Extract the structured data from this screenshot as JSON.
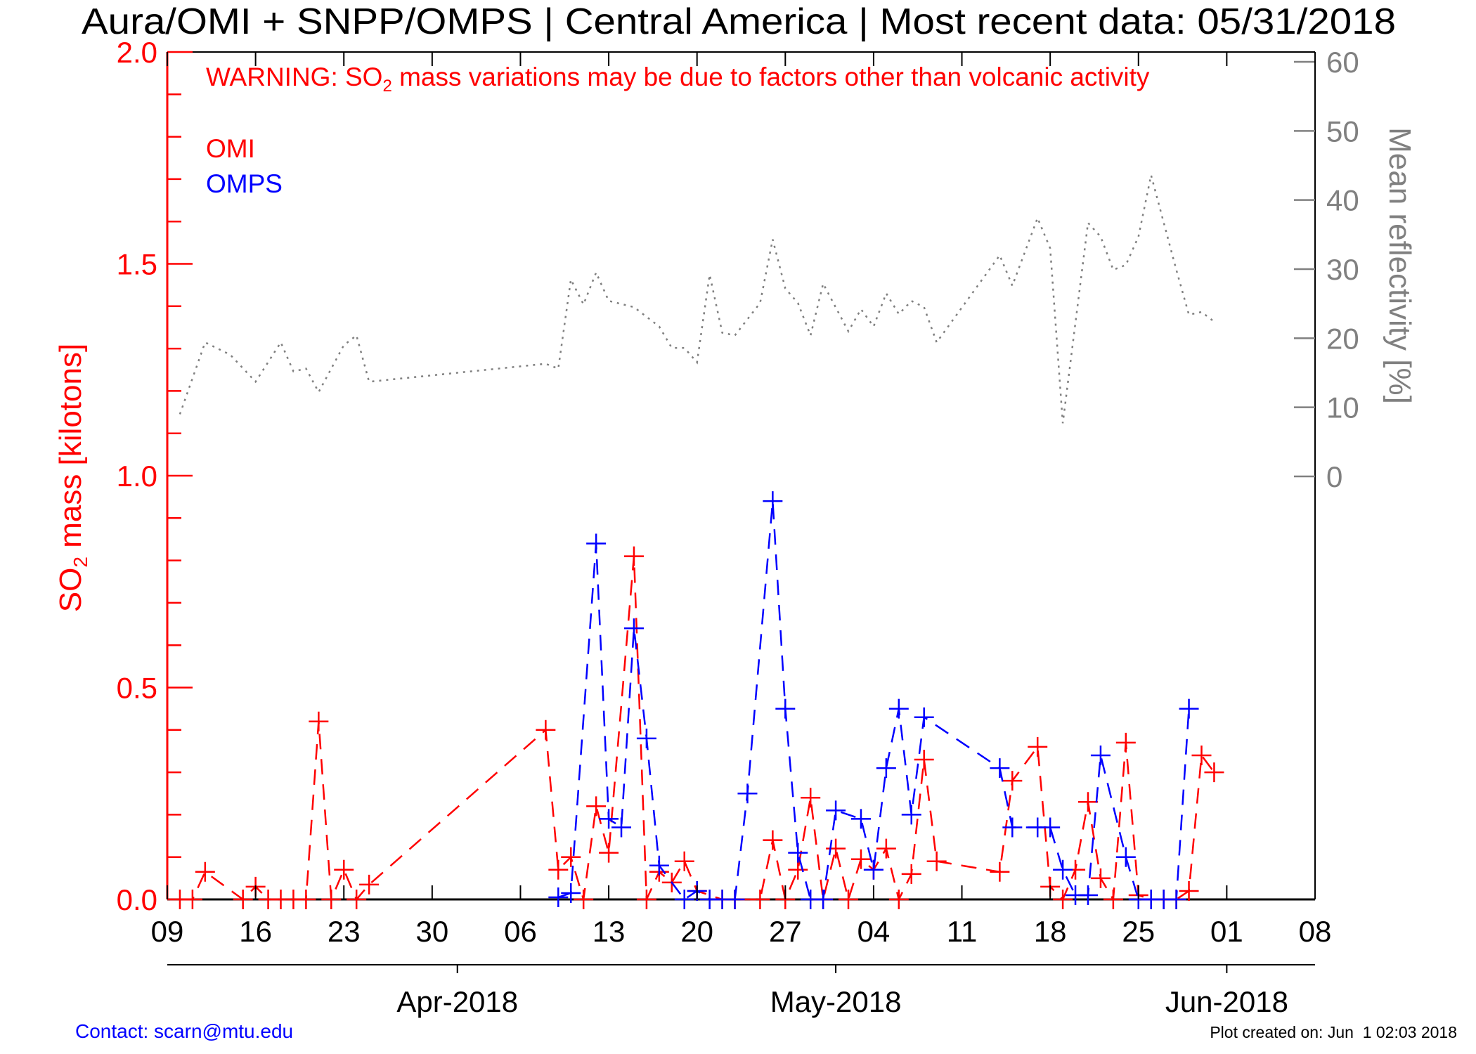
{
  "chart_data": {
    "type": "line",
    "title": "Aura/OMI + SNPP/OMPS | Central America | Most recent data: 05/31/2018",
    "warning_prefix": "WARNING: SO",
    "warning_sub": "2",
    "warning_suffix": " mass variations may be due to factors other than volcanic activity",
    "ylabel_prefix": "SO",
    "ylabel_sub": "2",
    "ylabel_suffix": " mass [kilotons]",
    "y2label": "Mean reflectivity [%]",
    "xlim": [
      "2018-03-09",
      "2018-06-08"
    ],
    "ylim": [
      0,
      2.0
    ],
    "y2lim": [
      0,
      60
    ],
    "y_ticks": [
      "0.0",
      "0.5",
      "1.0",
      "1.5",
      "2.0"
    ],
    "y2_ticks": [
      "0",
      "10",
      "20",
      "30",
      "40",
      "50",
      "60"
    ],
    "x_ticks": [
      {
        "date": "2018-03-09",
        "label": "09"
      },
      {
        "date": "2018-03-16",
        "label": "16"
      },
      {
        "date": "2018-03-23",
        "label": "23"
      },
      {
        "date": "2018-03-30",
        "label": "30"
      },
      {
        "date": "2018-04-06",
        "label": "06"
      },
      {
        "date": "2018-04-13",
        "label": "13"
      },
      {
        "date": "2018-04-20",
        "label": "20"
      },
      {
        "date": "2018-04-27",
        "label": "27"
      },
      {
        "date": "2018-05-04",
        "label": "04"
      },
      {
        "date": "2018-05-11",
        "label": "11"
      },
      {
        "date": "2018-05-18",
        "label": "18"
      },
      {
        "date": "2018-05-25",
        "label": "25"
      },
      {
        "date": "2018-06-01",
        "label": "01"
      },
      {
        "date": "2018-06-08",
        "label": "08"
      }
    ],
    "month_ticks": [
      {
        "date": "2018-04-01",
        "label": "Apr-2018"
      },
      {
        "date": "2018-05-01",
        "label": "May-2018"
      },
      {
        "date": "2018-06-01",
        "label": "Jun-2018"
      }
    ],
    "grid": false,
    "legend_placement": "top-left",
    "colors": {
      "omi": "#ff0000",
      "omps": "#0000ff",
      "reflectivity": "#808080",
      "left_axis": "#ff0000",
      "right_axis": "#808080"
    },
    "series": [
      {
        "name": "OMI",
        "axis": "left",
        "style": "dashed-plus",
        "points": [
          [
            "2018-03-10",
            0
          ],
          [
            "2018-03-11",
            0
          ],
          [
            "2018-03-12",
            0.065
          ],
          [
            "2018-03-15",
            0
          ],
          [
            "2018-03-16",
            0.03
          ],
          [
            "2018-03-17",
            0
          ],
          [
            "2018-03-18",
            0
          ],
          [
            "2018-03-19",
            0
          ],
          [
            "2018-03-20",
            0
          ],
          [
            "2018-03-21",
            0.42
          ],
          [
            "2018-03-22",
            0
          ],
          [
            "2018-03-23",
            0.07
          ],
          [
            "2018-03-24",
            0
          ],
          [
            "2018-03-25",
            0.035
          ],
          [
            "2018-04-08",
            0.4
          ],
          [
            "2018-04-09",
            0.07
          ],
          [
            "2018-04-10",
            0.1
          ],
          [
            "2018-04-11",
            0
          ],
          [
            "2018-04-12",
            0.22
          ],
          [
            "2018-04-13",
            0.11
          ],
          [
            "2018-04-15",
            0.81
          ],
          [
            "2018-04-16",
            0
          ],
          [
            "2018-04-17",
            0.065
          ],
          [
            "2018-04-18",
            0.04
          ],
          [
            "2018-04-19",
            0.09
          ],
          [
            "2018-04-20",
            0.02
          ],
          [
            "2018-04-22",
            0
          ],
          [
            "2018-04-23",
            0
          ],
          [
            "2018-04-25",
            0
          ],
          [
            "2018-04-26",
            0.14
          ],
          [
            "2018-04-27",
            0
          ],
          [
            "2018-04-28",
            0.07
          ],
          [
            "2018-04-29",
            0.24
          ],
          [
            "2018-04-30",
            0
          ],
          [
            "2018-05-01",
            0.12
          ],
          [
            "2018-05-02",
            0
          ],
          [
            "2018-05-03",
            0.095
          ],
          [
            "2018-05-04",
            0.07
          ],
          [
            "2018-05-05",
            0.12
          ],
          [
            "2018-05-06",
            0
          ],
          [
            "2018-05-07",
            0.06
          ],
          [
            "2018-05-08",
            0.33
          ],
          [
            "2018-05-09",
            0.09
          ],
          [
            "2018-05-14",
            0.065
          ],
          [
            "2018-05-15",
            0.28
          ],
          [
            "2018-05-17",
            0.36
          ],
          [
            "2018-05-18",
            0.03
          ],
          [
            "2018-05-19",
            0
          ],
          [
            "2018-05-20",
            0.07
          ],
          [
            "2018-05-21",
            0.23
          ],
          [
            "2018-05-22",
            0.05
          ],
          [
            "2018-05-23",
            0
          ],
          [
            "2018-05-24",
            0.37
          ],
          [
            "2018-05-25",
            0.01
          ],
          [
            "2018-05-26",
            0
          ],
          [
            "2018-05-27",
            0
          ],
          [
            "2018-05-28",
            0
          ],
          [
            "2018-05-29",
            0.02
          ],
          [
            "2018-05-30",
            0.34
          ],
          [
            "2018-05-31",
            0.3
          ]
        ]
      },
      {
        "name": "OMPS",
        "axis": "left",
        "style": "dashed-plus",
        "points": [
          [
            "2018-04-09",
            0.005
          ],
          [
            "2018-04-10",
            0.015
          ],
          [
            "2018-04-12",
            0.84
          ],
          [
            "2018-04-13",
            0.19
          ],
          [
            "2018-04-14",
            0.17
          ],
          [
            "2018-04-15",
            0.64
          ],
          [
            "2018-04-16",
            0.38
          ],
          [
            "2018-04-17",
            0.08
          ],
          [
            "2018-04-19",
            0
          ],
          [
            "2018-04-20",
            0.02
          ],
          [
            "2018-04-21",
            0
          ],
          [
            "2018-04-22",
            0
          ],
          [
            "2018-04-23",
            0
          ],
          [
            "2018-04-24",
            0.25
          ],
          [
            "2018-04-26",
            0.94
          ],
          [
            "2018-04-27",
            0.45
          ],
          [
            "2018-04-28",
            0.11
          ],
          [
            "2018-04-29",
            0
          ],
          [
            "2018-04-30",
            0
          ],
          [
            "2018-05-01",
            0.21
          ],
          [
            "2018-05-03",
            0.19
          ],
          [
            "2018-05-04",
            0.07
          ],
          [
            "2018-05-05",
            0.31
          ],
          [
            "2018-05-06",
            0.45
          ],
          [
            "2018-05-07",
            0.2
          ],
          [
            "2018-05-08",
            0.43
          ],
          [
            "2018-05-14",
            0.31
          ],
          [
            "2018-05-15",
            0.17
          ],
          [
            "2018-05-17",
            0.17
          ],
          [
            "2018-05-18",
            0.17
          ],
          [
            "2018-05-19",
            0.07
          ],
          [
            "2018-05-20",
            0.01
          ],
          [
            "2018-05-21",
            0.01
          ],
          [
            "2018-05-22",
            0.34
          ],
          [
            "2018-05-24",
            0.1
          ],
          [
            "2018-05-25",
            0
          ],
          [
            "2018-05-26",
            0
          ],
          [
            "2018-05-27",
            0
          ],
          [
            "2018-05-28",
            0
          ],
          [
            "2018-05-29",
            0.45
          ]
        ]
      },
      {
        "axis": "right",
        "style": "dotted",
        "points": [
          [
            "2018-03-10",
            9
          ],
          [
            "2018-03-12",
            19.4
          ],
          [
            "2018-03-14",
            17.6
          ],
          [
            "2018-03-16",
            13.7
          ],
          [
            "2018-03-18",
            19.4
          ],
          [
            "2018-03-19",
            15.2
          ],
          [
            "2018-03-20",
            15.6
          ],
          [
            "2018-03-21",
            12.2
          ],
          [
            "2018-03-23",
            19
          ],
          [
            "2018-03-24",
            20.4
          ],
          [
            "2018-03-25",
            13.7
          ],
          [
            "2018-04-08",
            16.3
          ],
          [
            "2018-04-09",
            15.6
          ],
          [
            "2018-04-10",
            28.5
          ],
          [
            "2018-04-11",
            24.9
          ],
          [
            "2018-04-12",
            29.5
          ],
          [
            "2018-04-13",
            25.4
          ],
          [
            "2018-04-15",
            24.5
          ],
          [
            "2018-04-17",
            21.7
          ],
          [
            "2018-04-18",
            18.6
          ],
          [
            "2018-04-19",
            18.6
          ],
          [
            "2018-04-20",
            16.5
          ],
          [
            "2018-04-21",
            29.2
          ],
          [
            "2018-04-22",
            20.8
          ],
          [
            "2018-04-23",
            20.4
          ],
          [
            "2018-04-25",
            25.1
          ],
          [
            "2018-04-26",
            34.3
          ],
          [
            "2018-04-27",
            27.2
          ],
          [
            "2018-04-28",
            25.1
          ],
          [
            "2018-04-29",
            20.4
          ],
          [
            "2018-04-30",
            27.9
          ],
          [
            "2018-05-02",
            21
          ],
          [
            "2018-05-03",
            24.2
          ],
          [
            "2018-05-04",
            21.7
          ],
          [
            "2018-05-05",
            26.5
          ],
          [
            "2018-05-06",
            23.5
          ],
          [
            "2018-05-07",
            25.4
          ],
          [
            "2018-05-08",
            24.5
          ],
          [
            "2018-05-09",
            19.4
          ],
          [
            "2018-05-14",
            32
          ],
          [
            "2018-05-15",
            27.6
          ],
          [
            "2018-05-17",
            37.4
          ],
          [
            "2018-05-18",
            33
          ],
          [
            "2018-05-19",
            7.7
          ],
          [
            "2018-05-21",
            36.7
          ],
          [
            "2018-05-22",
            34.7
          ],
          [
            "2018-05-23",
            29.9
          ],
          [
            "2018-05-24",
            30.6
          ],
          [
            "2018-05-25",
            34.7
          ],
          [
            "2018-05-26",
            43.6
          ],
          [
            "2018-05-28",
            29.9
          ],
          [
            "2018-05-29",
            23.4
          ],
          [
            "2018-05-30",
            23.8
          ],
          [
            "2018-05-31",
            22.4
          ]
        ]
      }
    ]
  },
  "footer": {
    "contact": "Contact: scarn@mtu.edu",
    "created": "Plot created on: Jun  1 02:03 2018"
  }
}
